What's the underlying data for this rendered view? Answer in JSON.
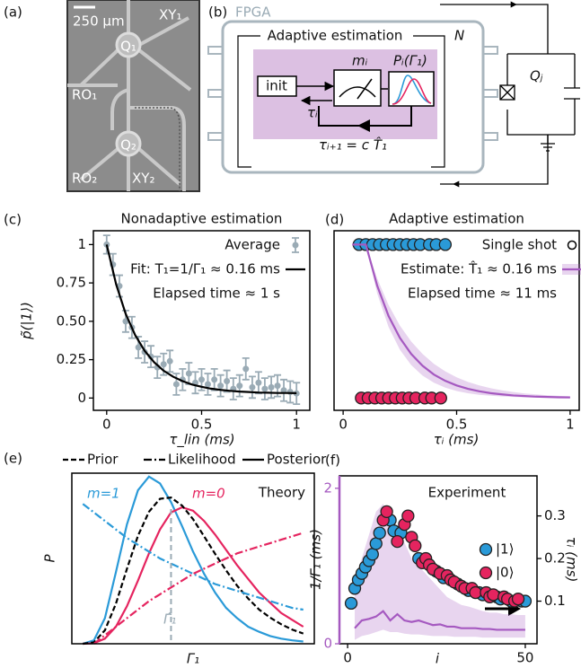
{
  "panel_a": {
    "label": "(a)",
    "scale_bar": "250 µm",
    "xy1": "XY₁",
    "q1": "Q₁",
    "ro1": "RO₁",
    "q2": "Q₂",
    "ro2": "RO₂",
    "xy2": "XY₂"
  },
  "panel_b": {
    "label": "(b)",
    "fpga": "FPGA",
    "title": "Adaptive estimation",
    "n": "N",
    "init": "init",
    "m": "mᵢ",
    "p": "Pᵢ(Γ₁)",
    "tau": "τᵢ",
    "update": "τᵢ₊₁ = c T̂₁",
    "qubit": "Qⱼ"
  },
  "chart_data": [
    {
      "type": "scatter",
      "panel": "(c)",
      "title": "Nonadaptive estimation",
      "xlabel": "τ_lin (ms)",
      "ylabel": "p̃(|1⟩)",
      "xlim": [
        -0.07,
        1.07
      ],
      "ylim": [
        -0.08,
        1.09
      ],
      "xticks": [
        0,
        0.5,
        1
      ],
      "yticks": [
        0,
        0.25,
        {
          "value": 0.5,
          "label": "0.50"
        },
        0.75,
        1
      ],
      "legend": "upper right",
      "series": [
        {
          "name": "Average",
          "color": "#9aabb5",
          "x": [
            0,
            0.033,
            0.067,
            0.1,
            0.133,
            0.167,
            0.2,
            0.233,
            0.267,
            0.3,
            0.333,
            0.367,
            0.4,
            0.433,
            0.467,
            0.5,
            0.533,
            0.567,
            0.6,
            0.633,
            0.667,
            0.7,
            0.733,
            0.767,
            0.8,
            0.833,
            0.867,
            0.9,
            0.933,
            0.967,
            1.0
          ],
          "values": [
            1.0,
            0.87,
            0.73,
            0.5,
            0.46,
            0.33,
            0.3,
            0.27,
            0.2,
            0.22,
            0.24,
            0.09,
            0.12,
            0.16,
            0.1,
            0.12,
            0.09,
            0.12,
            0.08,
            0.11,
            0.06,
            0.08,
            0.19,
            0.07,
            0.1,
            0.06,
            0.07,
            0.08,
            0.05,
            0.04,
            0.03
          ],
          "errors": [
            0.06,
            0.07,
            0.07,
            0.07,
            0.07,
            0.07,
            0.07,
            0.07,
            0.07,
            0.07,
            0.07,
            0.07,
            0.07,
            0.07,
            0.07,
            0.07,
            0.07,
            0.07,
            0.07,
            0.07,
            0.07,
            0.07,
            0.07,
            0.07,
            0.07,
            0.07,
            0.07,
            0.07,
            0.07,
            0.07,
            0.07
          ]
        },
        {
          "name": "Fit: T₁=1/Γ₁ ≈ 0.16 ms",
          "type": "line",
          "color": "#000000",
          "dash": "solid",
          "x": [
            0,
            0.05,
            0.1,
            0.15,
            0.2,
            0.25,
            0.3,
            0.35,
            0.4,
            0.45,
            0.5,
            0.55,
            0.6,
            0.65,
            0.7,
            0.75,
            0.8,
            0.85,
            0.9,
            0.95,
            1.0
          ],
          "values": [
            1.0,
            0.74,
            0.549,
            0.41,
            0.308,
            0.233,
            0.178,
            0.139,
            0.11,
            0.088,
            0.073,
            0.061,
            0.053,
            0.047,
            0.042,
            0.039,
            0.036,
            0.035,
            0.033,
            0.033,
            0.032
          ]
        }
      ],
      "annotations": [
        "Elapsed time ≈ 1 s"
      ]
    },
    {
      "type": "scatter",
      "panel": "(d)",
      "title": "Adaptive estimation",
      "xlabel": "τᵢ (ms)",
      "xlim": [
        -0.04,
        1.04
      ],
      "ylim": [
        -0.08,
        1.09
      ],
      "xticks": [
        0,
        0.5,
        1
      ],
      "legend": "upper right",
      "series": [
        {
          "name": "Single shot",
          "color": "#2a9ad8",
          "x": [
            0.07,
            0.1,
            0.13,
            0.16,
            0.19,
            0.22,
            0.25,
            0.28,
            0.31,
            0.34,
            0.38,
            0.41,
            0.45
          ],
          "values": [
            1,
            1,
            1,
            1,
            1,
            1,
            1,
            1,
            1,
            1,
            1,
            1,
            1
          ]
        },
        {
          "color": "#e5245f",
          "x": [
            0.08,
            0.11,
            0.14,
            0.17,
            0.2,
            0.23,
            0.26,
            0.29,
            0.32,
            0.36,
            0.39,
            0.43
          ],
          "values": [
            0,
            0,
            0,
            0,
            0,
            0,
            0,
            0,
            0,
            0,
            0,
            0
          ]
        },
        {
          "name": "Estimate: T̂₁ ≈ 0.16 ms",
          "type": "line",
          "color": "#a559c0",
          "dash": "solid",
          "x": [
            0.04,
            0.1,
            0.15,
            0.2,
            0.25,
            0.3,
            0.35,
            0.4,
            0.45,
            0.5,
            0.55,
            0.6,
            0.65,
            0.7,
            0.75,
            0.8,
            0.85,
            0.9,
            0.95,
            1.0
          ],
          "values": [
            1,
            1,
            0.732,
            0.535,
            0.392,
            0.287,
            0.21,
            0.153,
            0.112,
            0.082,
            0.06,
            0.044,
            0.032,
            0.024,
            0.017,
            0.013,
            0.009,
            0.007,
            0.005,
            0.004
          ],
          "band_upper": [
            1,
            1,
            0.779,
            0.607,
            0.472,
            0.368,
            0.287,
            0.223,
            0.174,
            0.135,
            0.105,
            0.082,
            0.064,
            0.05,
            0.039,
            0.03,
            0.024,
            0.018,
            0.014,
            0.011
          ],
          "band_lower": [
            1,
            1,
            0.681,
            0.463,
            0.315,
            0.215,
            0.146,
            0.1,
            0.068,
            0.046,
            0.031,
            0.021,
            0.015,
            0.01,
            0.007,
            0.005,
            0.003,
            0.002,
            0.002,
            0.001
          ]
        }
      ],
      "annotations": [
        "Elapsed time ≈ 11 ms"
      ]
    },
    {
      "type": "line",
      "panel": "(e)",
      "xlabel": "Γ₁",
      "ylabel": "P",
      "xlim": [
        -0.05,
        1.05
      ],
      "ylim": [
        0,
        1.0
      ],
      "legend": "top",
      "legend_items": [
        {
          "label": "Prior",
          "dash": "dashed"
        },
        {
          "label": "Likelihood",
          "dash": "dashdot"
        },
        {
          "label": "Posterior",
          "dash": "solid"
        }
      ],
      "x": [
        0,
        0.05,
        0.1,
        0.15,
        0.2,
        0.25,
        0.3,
        0.35,
        0.4,
        0.45,
        0.5,
        0.55,
        0.6,
        0.65,
        0.7,
        0.75,
        0.8,
        0.85,
        0.9,
        0.95,
        1.0
      ],
      "series": [
        {
          "color": "#2a9ad8",
          "dash": "solid",
          "values": [
            0,
            0.02,
            0.15,
            0.42,
            0.7,
            0.9,
            0.98,
            0.94,
            0.83,
            0.69,
            0.54,
            0.41,
            0.3,
            0.21,
            0.15,
            0.1,
            0.07,
            0.045,
            0.03,
            0.02,
            0.013
          ]
        },
        {
          "color": "#e5245f",
          "dash": "solid",
          "values": [
            0,
            0.003,
            0.03,
            0.1,
            0.22,
            0.37,
            0.53,
            0.67,
            0.77,
            0.8,
            0.78,
            0.72,
            0.64,
            0.55,
            0.46,
            0.38,
            0.3,
            0.24,
            0.18,
            0.14,
            0.1
          ]
        },
        {
          "color": "#000000",
          "dash": "dashed",
          "values": [
            0,
            0.008,
            0.079,
            0.235,
            0.439,
            0.633,
            0.774,
            0.85,
            0.857,
            0.81,
            0.73,
            0.63,
            0.527,
            0.43,
            0.34,
            0.265,
            0.2,
            0.153,
            0.114,
            0.083,
            0.06
          ]
        },
        {
          "color": "#2a9ad8",
          "dash": "dashdot",
          "values": [
            0.82,
            0.77,
            0.72,
            0.67,
            0.62,
            0.58,
            0.54,
            0.5,
            0.47,
            0.44,
            0.41,
            0.38,
            0.35,
            0.33,
            0.31,
            0.29,
            0.27,
            0.25,
            0.23,
            0.21,
            0.2
          ]
        },
        {
          "color": "#e5245f",
          "dash": "dashdot",
          "values": [
            null,
            0,
            0.05,
            0.1,
            0.15,
            0.2,
            0.25,
            0.29,
            0.33,
            0.37,
            0.41,
            0.44,
            0.47,
            0.5,
            0.53,
            0.55,
            0.57,
            0.59,
            0.61,
            0.63,
            0.65
          ]
        }
      ],
      "estimate": {
        "label": "Γ̂₁",
        "value": 0.4,
        "color": "#9aabb5"
      },
      "annotations": [
        "Theory",
        "m=1",
        "m=0"
      ]
    },
    {
      "type": "scatter",
      "panel": "(f)",
      "xlabel": "i",
      "ylabel": "1/Γ₁ (ms)",
      "y2label": "τᵢ (ms)",
      "xlim": [
        -2.3,
        53.3
      ],
      "ylim": [
        0,
        2.16
      ],
      "y2lim": [
        0,
        0.394
      ],
      "xticks": [
        0,
        50
      ],
      "yticks": [
        0,
        2
      ],
      "y2ticks": [
        0.1,
        0.2,
        0.3
      ],
      "y_axis_color": "#a559c0",
      "legend": "center right",
      "series": [
        {
          "type": "line",
          "color": "#a559c0",
          "dash": "solid",
          "x": [
            2,
            4,
            6,
            8,
            10,
            12,
            14,
            16,
            18,
            20,
            22,
            24,
            26,
            28,
            30,
            32,
            34,
            36,
            38,
            40,
            42,
            44,
            46,
            48,
            50
          ],
          "values": [
            0.2,
            0.3,
            0.32,
            0.35,
            0.42,
            0.3,
            0.38,
            0.3,
            0.28,
            0.3,
            0.27,
            0.24,
            0.25,
            0.22,
            0.22,
            0.2,
            0.2,
            0.2,
            0.19,
            0.19,
            0.18,
            0.18,
            0.18,
            0.18,
            0.18
          ],
          "band_upper": [
            0.8,
            1.1,
            1.4,
            1.7,
            1.8,
            1.6,
            1.5,
            1.3,
            1.1,
            1.0,
            0.9,
            0.8,
            0.7,
            0.6,
            0.55,
            0.5,
            0.48,
            0.45,
            0.42,
            0.4,
            0.4,
            0.38,
            0.38,
            0.37,
            0.37
          ],
          "band_lower": [
            0.05,
            0.1,
            0.12,
            0.15,
            0.18,
            0.15,
            0.15,
            0.13,
            0.12,
            0.12,
            0.11,
            0.1,
            0.1,
            0.1,
            0.09,
            0.09,
            0.09,
            0.09,
            0.08,
            0.08,
            0.08,
            0.08,
            0.08,
            0.08,
            0.08
          ]
        },
        {
          "name": "|1⟩",
          "color": "#2a9ad8",
          "axis": "y2",
          "x": [
            1,
            2,
            3,
            4,
            5,
            6,
            7,
            8,
            9,
            12,
            13,
            15,
            20,
            25,
            27,
            31,
            34,
            37,
            38,
            42,
            43,
            46,
            49,
            50
          ],
          "values": [
            0.095,
            0.13,
            0.15,
            0.165,
            0.18,
            0.195,
            0.21,
            0.235,
            0.26,
            0.29,
            0.265,
            0.26,
            0.2,
            0.17,
            0.155,
            0.14,
            0.125,
            0.12,
            0.115,
            0.11,
            0.105,
            0.1,
            0.1,
            0.1
          ]
        },
        {
          "name": "|0⟩",
          "color": "#e5245f",
          "axis": "y2",
          "x": [
            10,
            11,
            14,
            16,
            17,
            18,
            19,
            21,
            22,
            23,
            24,
            26,
            28,
            29,
            30,
            32,
            33,
            35,
            36,
            39,
            40,
            41,
            44,
            45,
            47,
            48
          ],
          "values": [
            0.29,
            0.31,
            0.24,
            0.28,
            0.3,
            0.25,
            0.23,
            0.19,
            0.2,
            0.185,
            0.175,
            0.165,
            0.16,
            0.15,
            0.145,
            0.135,
            0.13,
            0.13,
            0.12,
            0.12,
            0.11,
            0.115,
            0.11,
            0.105,
            0.1,
            0.105
          ]
        }
      ],
      "annotations": [
        "Experiment"
      ]
    }
  ]
}
